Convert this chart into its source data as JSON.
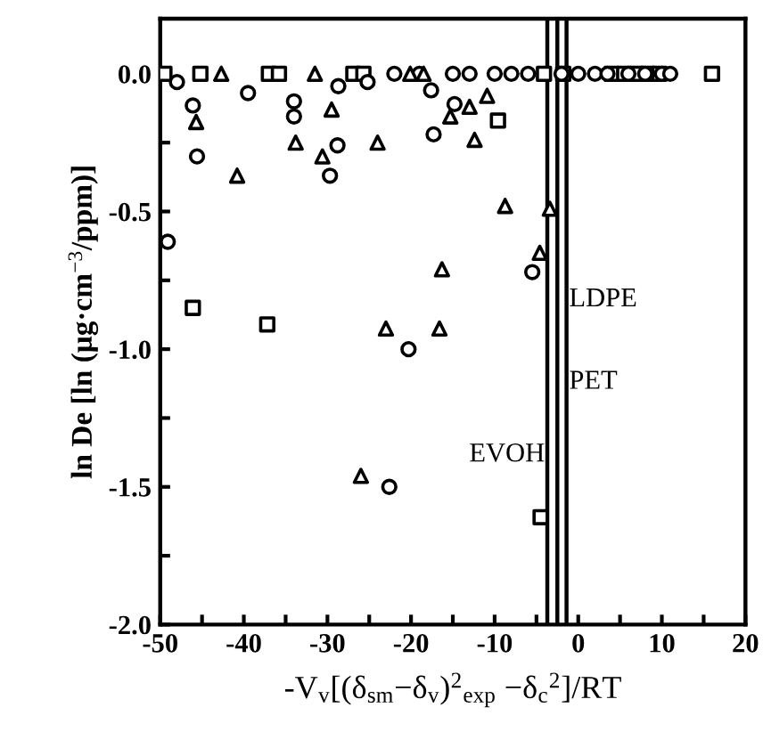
{
  "chart_data": {
    "type": "scatter",
    "xlabel": "-V$_{v}$[(δ$_{sm}$−δ$_{v}$)$^{2}$$_{exp}$ −δ$_{c}$$^{2}$]/RT",
    "ylabel": "ln De [ln (μg·cm$^{−3}$/ppm)]",
    "xlim": [
      -50,
      20
    ],
    "xticks": [
      {
        "value": -50,
        "label": "-50"
      },
      {
        "value": -45,
        "label": null
      },
      {
        "value": -40,
        "label": "-40"
      },
      {
        "value": -35,
        "label": null
      },
      {
        "value": -30,
        "label": "-30"
      },
      {
        "value": -25,
        "label": null
      },
      {
        "value": -20,
        "label": "-20"
      },
      {
        "value": -15,
        "label": null
      },
      {
        "value": -10,
        "label": "-10"
      },
      {
        "value": -5,
        "label": null
      },
      0,
      {
        "value": 5,
        "label": null
      },
      10,
      {
        "value": 15,
        "label": null
      },
      20
    ],
    "ylim": [
      -2.0,
      0.2
    ],
    "yticks": [
      {
        "value": 0,
        "label": "0.0"
      },
      {
        "value": -0.25,
        "label": null
      },
      {
        "value": -0.5,
        "label": "-0.5"
      },
      {
        "value": -0.75,
        "label": null
      },
      {
        "value": -1.0,
        "label": "-1.0"
      },
      {
        "value": -1.25,
        "label": null
      },
      {
        "value": -1.5,
        "label": "-1.5"
      },
      {
        "value": -1.75,
        "label": null
      },
      {
        "value": -2.0,
        "label": "-2.0"
      }
    ],
    "grid": false,
    "series": [
      {
        "color": "#000000",
        "marker": "square",
        "x": [
          -49.5,
          -45.2,
          -37.0,
          -35.8,
          -26.9,
          -25.7,
          -46.1,
          -37.2,
          -4.5,
          -9.6,
          -4.1,
          -1.8,
          4.0,
          5.5,
          7.0,
          8.3,
          9.7,
          16.0
        ],
        "values": [
          0,
          0,
          0,
          0,
          0,
          0,
          -0.85,
          -0.91,
          -1.61,
          -0.17,
          0,
          0,
          0,
          0,
          0,
          0,
          0,
          0
        ]
      },
      {
        "color": "#000000",
        "marker": "circle",
        "x": [
          -48.0,
          -39.5,
          -46.1,
          -45.6,
          -49.1,
          -34.0,
          -34.0,
          -29.7,
          -28.8,
          -28.7,
          -25.2,
          -17.6,
          -17.3,
          -20.3,
          -22.6,
          -14.8,
          -5.5,
          -22.0,
          -19.0,
          -15.0,
          -13.0,
          -10.0,
          -8.0,
          -6.0,
          -2.0,
          0.0,
          2.0,
          3.5,
          6.0,
          8.0,
          10.0,
          11.0
        ],
        "values": [
          -0.03,
          -0.07,
          -0.115,
          -0.3,
          -0.61,
          -0.1,
          -0.155,
          -0.37,
          -0.26,
          -0.045,
          -0.03,
          -0.06,
          -0.22,
          -1.0,
          -1.5,
          -0.11,
          -0.72,
          0,
          0,
          0,
          0,
          0,
          0,
          0,
          0,
          0,
          0,
          0,
          0,
          0,
          0,
          0
        ]
      },
      {
        "color": "#000000",
        "marker": "triangle",
        "x": [
          -42.7,
          -31.5,
          -20.1,
          -18.5,
          -45.7,
          -40.8,
          -33.8,
          -29.5,
          -30.6,
          -24.0,
          -23.0,
          -16.6,
          -16.3,
          -26.0,
          -10.9,
          -15.3,
          -13.0,
          -12.4,
          -8.75,
          -3.4,
          -4.6
        ],
        "values": [
          0,
          0,
          0,
          0,
          -0.175,
          -0.37,
          -0.25,
          -0.13,
          -0.3,
          -0.25,
          -0.925,
          -0.925,
          -0.71,
          -1.46,
          -0.08,
          -0.155,
          -0.12,
          -0.24,
          -0.48,
          -0.49,
          -0.65
        ]
      }
    ],
    "ref_lines": [
      {
        "axis": "x",
        "value": -3.7,
        "label": "EVOH",
        "color": "#000000",
        "line_style": "solid"
      },
      {
        "axis": "x",
        "value": -2.5,
        "label": "PET",
        "color": "#000000",
        "line_style": "solid"
      },
      {
        "axis": "x",
        "value": -1.4,
        "label": "LDPE",
        "color": "#000000",
        "line_style": "solid"
      }
    ]
  }
}
